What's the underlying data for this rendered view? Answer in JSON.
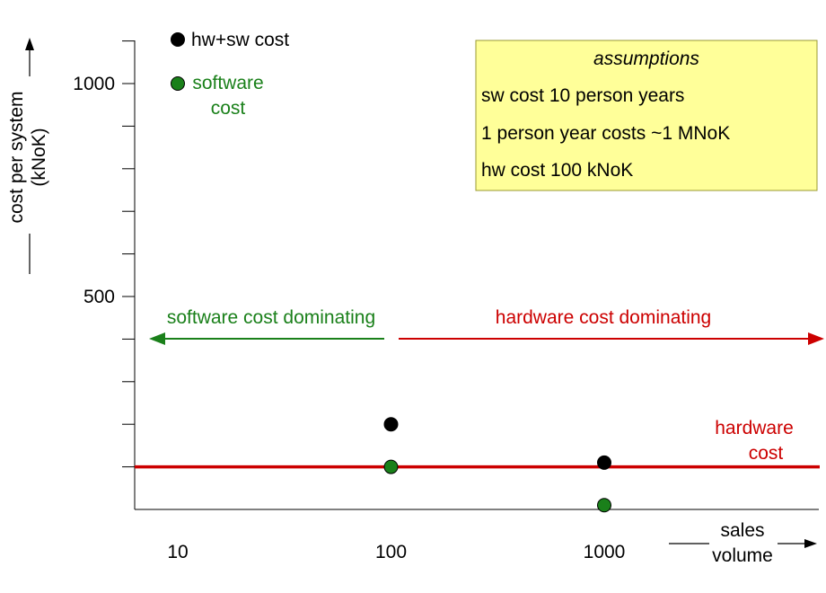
{
  "chart_data": {
    "type": "scatter",
    "xscale": "log",
    "xlim": [
      10,
      1000
    ],
    "ylim": [
      0,
      1100
    ],
    "x_ticks": [
      10,
      100,
      1000
    ],
    "y_major_ticks": [
      500,
      1000
    ],
    "y_minor_step": 100,
    "ylabel": "cost per system (kNoK)",
    "xlabel": "sales volume",
    "grid": false,
    "series": [
      {
        "name": "hw+sw cost",
        "color": "#000000",
        "points": [
          {
            "x": 100,
            "y": 200
          },
          {
            "x": 1000,
            "y": 110
          }
        ]
      },
      {
        "name": "software cost",
        "color": "#1a801a",
        "points": [
          {
            "x": 10,
            "y": 1000
          },
          {
            "x": 100,
            "y": 100
          },
          {
            "x": 1000,
            "y": 10
          }
        ]
      }
    ],
    "hardware_cost_line": {
      "value": 100,
      "color": "#cc0000",
      "label": "hardware cost"
    },
    "regions": {
      "software": {
        "label": "software cost dominating",
        "color": "#1a801a"
      },
      "hardware": {
        "label": "hardware cost dominating",
        "color": "#cc0000"
      }
    },
    "assumptions": {
      "title": "assumptions",
      "lines": [
        "sw cost 10 person years",
        "1 person year costs ~1 MNoK",
        "hw cost 100 kNoK"
      ],
      "background": "#ffff99"
    }
  }
}
